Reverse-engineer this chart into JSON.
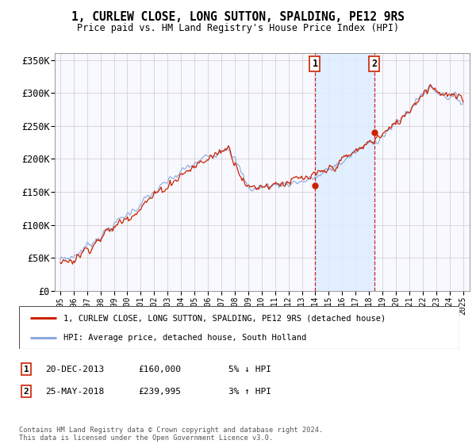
{
  "title": "1, CURLEW CLOSE, LONG SUTTON, SPALDING, PE12 9RS",
  "subtitle": "Price paid vs. HM Land Registry's House Price Index (HPI)",
  "ylim": [
    0,
    360000
  ],
  "yticks": [
    0,
    50000,
    100000,
    150000,
    200000,
    250000,
    300000,
    350000
  ],
  "ytick_labels": [
    "£0",
    "£50K",
    "£100K",
    "£150K",
    "£200K",
    "£250K",
    "£300K",
    "£350K"
  ],
  "background_color": "#ffffff",
  "plot_bg_color": "#f8f8ff",
  "grid_color": "#cccccc",
  "sale1_date": 2013.97,
  "sale1_price": 160000,
  "sale1_label": "1",
  "sale2_date": 2018.4,
  "sale2_price": 239995,
  "sale2_label": "2",
  "shade_color": "#ddeeff",
  "vline_color": "#cc0000",
  "hpi_line_color": "#88aadd",
  "price_line_color": "#cc2200",
  "legend_label_price": "1, CURLEW CLOSE, LONG SUTTON, SPALDING, PE12 9RS (detached house)",
  "legend_label_hpi": "HPI: Average price, detached house, South Holland",
  "footnote": "Contains HM Land Registry data © Crown copyright and database right 2024.\nThis data is licensed under the Open Government Licence v3.0.",
  "xstart": 1995,
  "xend": 2025
}
